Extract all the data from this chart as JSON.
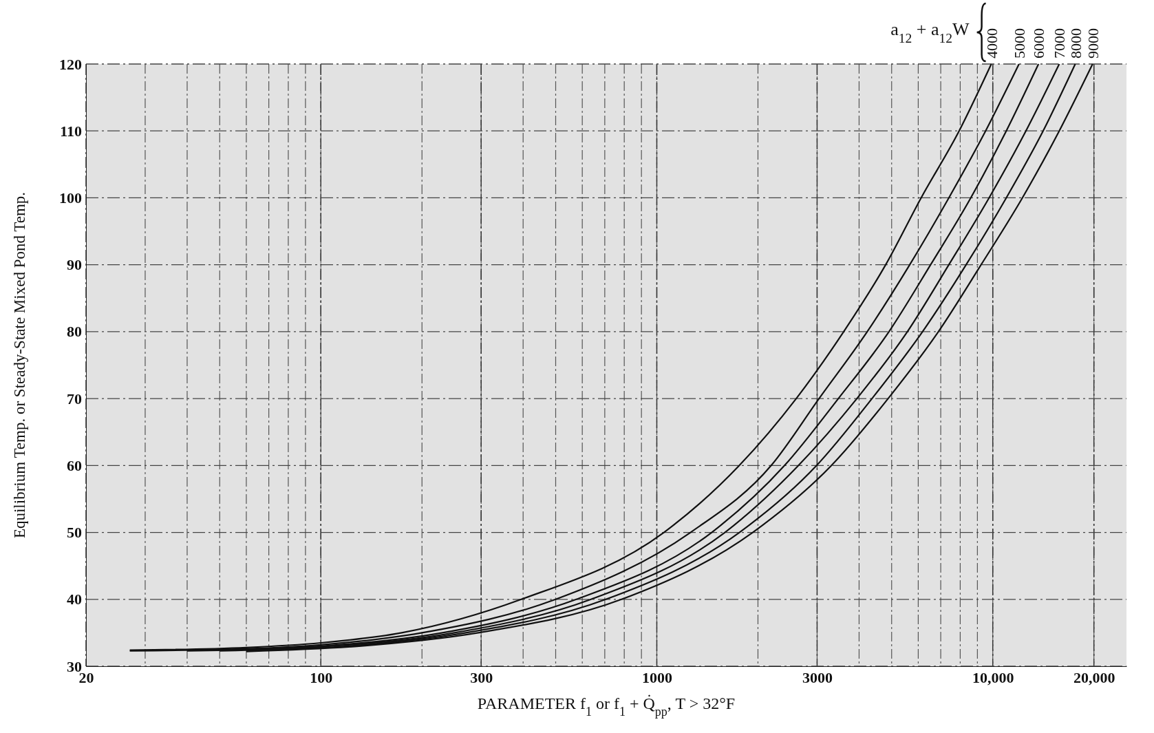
{
  "chart_data": {
    "type": "line",
    "xlabel": "PARAMETER  f$_{1}$ or f$_{1}$ + Q̇$_{pp}$,  T > 32°F",
    "ylabel": "Equilibrium Temp. or Steady-State Mixed Pond Temp.",
    "legend_title": "a$_{12}$ + a$_{12}$W",
    "legend": "top right",
    "log": "x",
    "grid": true,
    "marker": "none",
    "line_style": "solid",
    "xlim": [
      20,
      25000
    ],
    "xticks": [
      20,
      100,
      300,
      1000,
      3000,
      {
        "value": 10000,
        "label": "10,000"
      },
      {
        "value": 20000,
        "label": "20,000"
      }
    ],
    "ylim": [
      30,
      120
    ],
    "yticks": [
      30,
      40,
      50,
      60,
      70,
      80,
      90,
      100,
      110,
      120
    ],
    "series": [
      {
        "name": "4000",
        "color": "#111111",
        "x": [
          27,
          60,
          100,
          174,
          395,
          1050,
          1760,
          2600,
          3600,
          4800,
          6120,
          7940,
          9900
        ],
        "values": [
          32.4,
          32.8,
          33.5,
          35,
          40,
          50,
          60,
          70,
          80,
          90,
          100,
          110,
          120
        ]
      },
      {
        "name": "5000",
        "color": "#111111",
        "x": [
          27,
          60,
          100,
          200,
          500,
          1260,
          2190,
          3040,
          4230,
          5660,
          7400,
          9520,
          11970
        ],
        "values": [
          32.3,
          32.6,
          33.2,
          35,
          40,
          50,
          60,
          70,
          80,
          90,
          100,
          110,
          120
        ]
      },
      {
        "name": "6000",
        "color": "#111111",
        "x": [
          40,
          100,
          230,
          576,
          1457,
          2400,
          3470,
          4910,
          6530,
          8600,
          10970,
          13680
        ],
        "values": [
          32.3,
          33,
          35,
          40,
          50,
          60,
          70,
          80,
          90,
          100,
          110,
          120
        ]
      },
      {
        "name": "7000",
        "color": "#111111",
        "x": [
          50,
          100,
          250,
          637,
          1595,
          2640,
          3940,
          5570,
          7400,
          9750,
          12550,
          15770
        ],
        "values": [
          32.3,
          32.9,
          35,
          40,
          50,
          60,
          70,
          80,
          90,
          100,
          110,
          120
        ]
      },
      {
        "name": "8000",
        "color": "#111111",
        "x": [
          60,
          120,
          270,
          705,
          1762,
          2990,
          4370,
          6180,
          8330,
          10970,
          14120,
          17600
        ],
        "values": [
          32.3,
          33,
          35,
          40,
          50,
          60,
          70,
          80,
          90,
          100,
          110,
          120
        ]
      },
      {
        "name": "9000",
        "color": "#111111",
        "x": [
          60,
          130,
          294,
          785,
          1930,
          3310,
          4880,
          6890,
          9230,
          12250,
          15770,
          19820
        ],
        "values": [
          32.2,
          33,
          35,
          40,
          50,
          60,
          70,
          80,
          90,
          100,
          110,
          120
        ]
      }
    ]
  }
}
